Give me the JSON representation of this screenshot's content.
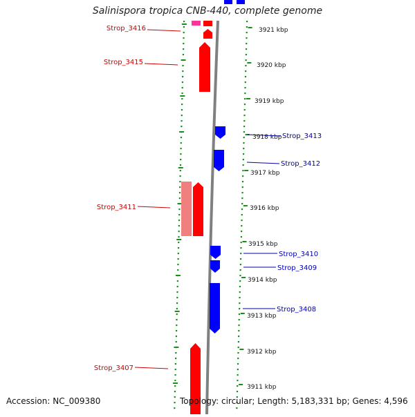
{
  "title": "Salinispora tropica CNB-440, complete genome",
  "footer": {
    "accession": "Accession: NC_009380",
    "summary": "Topology: circular; Length: 5,183,331 bp; Genes: 4,596"
  },
  "colors": {
    "forward_gene": "#ff0000",
    "forward_gene_light": "#f08080",
    "reverse_gene": "#0000ff",
    "forward_label": "#cc0000",
    "reverse_label": "#0000aa",
    "ring_dots": "#1a8c1a",
    "backbone": "#808080",
    "highlight": "#ff3399"
  },
  "ticks": [
    {
      "label": "3921 kbp"
    },
    {
      "label": "3920 kbp"
    },
    {
      "label": "3919 kbp"
    },
    {
      "label": "3918 kbp"
    },
    {
      "label": "3917 kbp"
    },
    {
      "label": "3916 kbp"
    },
    {
      "label": "3915 kbp"
    },
    {
      "label": "3914 kbp"
    },
    {
      "label": "3913 kbp"
    },
    {
      "label": "3912 kbp"
    },
    {
      "label": "3911 kbp"
    }
  ],
  "genes": [
    {
      "id": "Strop_3416",
      "strand": "forward"
    },
    {
      "id": "Strop_3415",
      "strand": "forward"
    },
    {
      "id": "Strop_3413",
      "strand": "reverse"
    },
    {
      "id": "Strop_3412",
      "strand": "reverse"
    },
    {
      "id": "Strop_3411",
      "strand": "forward"
    },
    {
      "id": "Strop_3410",
      "strand": "reverse"
    },
    {
      "id": "Strop_3409",
      "strand": "reverse"
    },
    {
      "id": "Strop_3408",
      "strand": "reverse"
    },
    {
      "id": "Strop_3407",
      "strand": "forward"
    }
  ]
}
